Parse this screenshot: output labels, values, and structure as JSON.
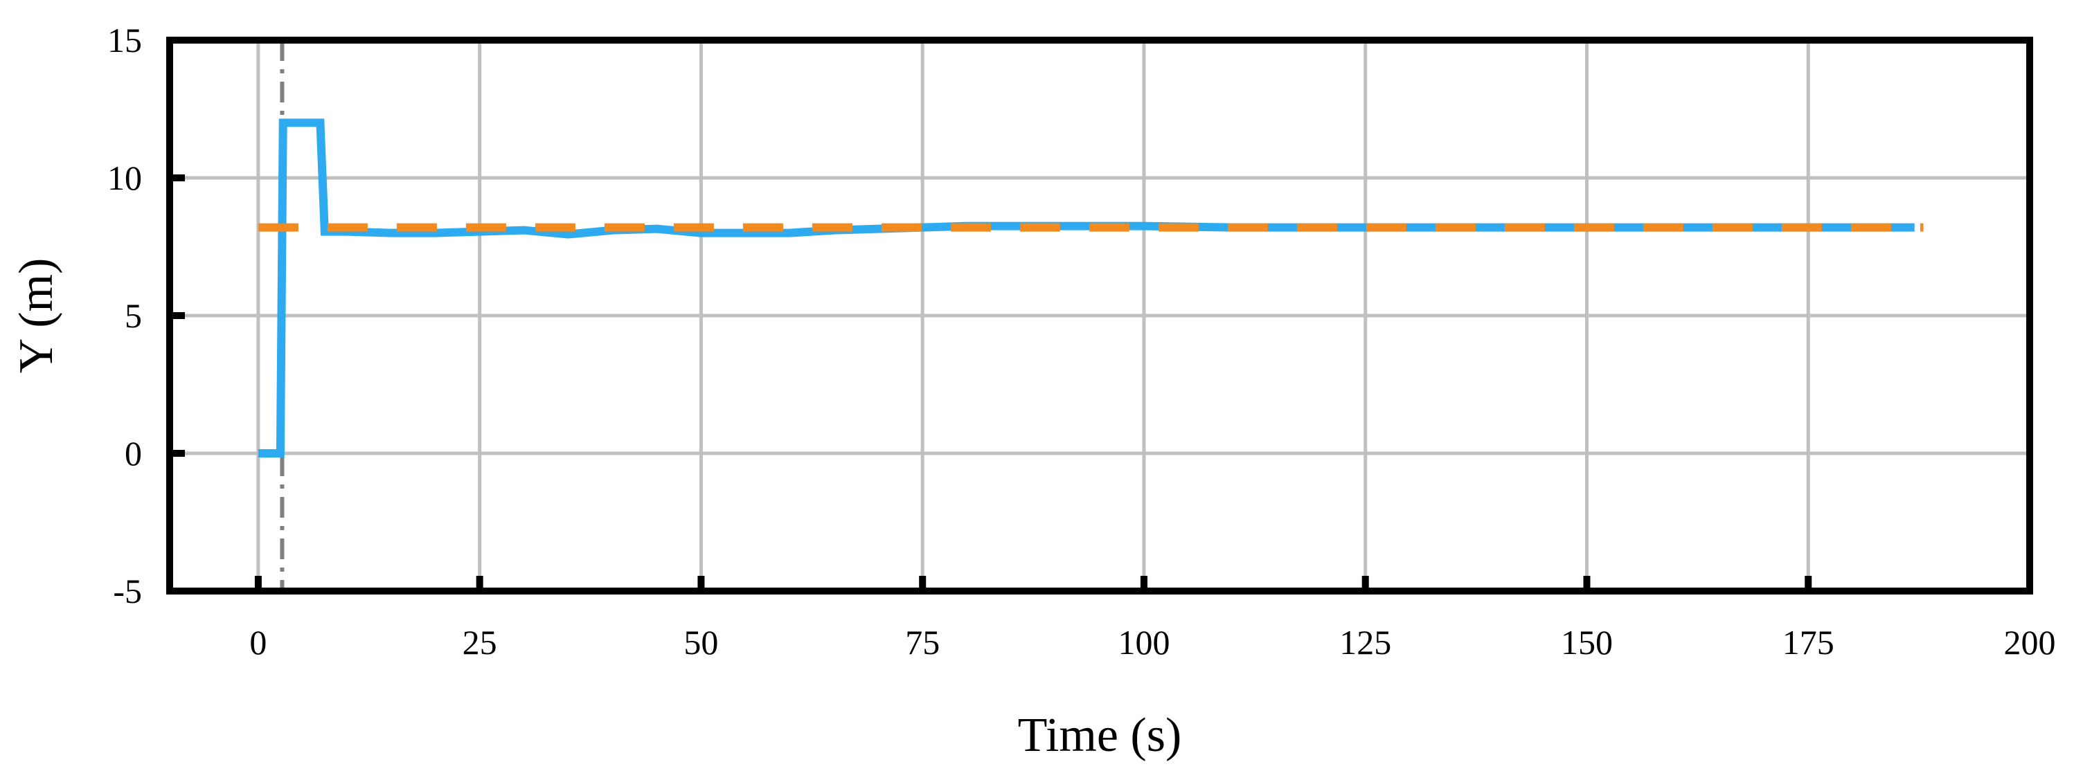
{
  "chart_data": {
    "type": "line",
    "x_label": "Time (s)",
    "y_label": "Y (m)",
    "xlim": [
      -10,
      200
    ],
    "ylim": [
      -5,
      15
    ],
    "xticks": [
      0,
      25,
      50,
      75,
      100,
      125,
      150,
      175,
      200
    ],
    "yticks": [
      -5,
      0,
      5,
      10,
      15
    ],
    "grid": true,
    "vline_x": 2.7,
    "series": [
      {
        "color": "#2eaaf0",
        "dashed": false,
        "x": [
          0,
          1,
          2.5,
          2.8,
          4,
          7,
          7.5,
          10,
          15,
          20,
          25,
          30,
          35,
          40,
          45,
          50,
          55,
          60,
          65,
          70,
          75,
          80,
          90,
          100,
          110,
          120,
          130,
          140,
          150,
          160,
          170,
          180,
          187
        ],
        "values": [
          0,
          0,
          0,
          12,
          12,
          12,
          8.05,
          8.05,
          8.0,
          8.0,
          8.05,
          8.1,
          7.95,
          8.1,
          8.15,
          8.0,
          8.0,
          8.0,
          8.1,
          8.15,
          8.2,
          8.25,
          8.25,
          8.25,
          8.2,
          8.2,
          8.2,
          8.2,
          8.2,
          8.2,
          8.2,
          8.2,
          8.2
        ]
      },
      {
        "color": "#f28a1e",
        "dashed": true,
        "x": [
          0,
          188
        ],
        "values": [
          8.2,
          8.2
        ]
      }
    ]
  }
}
